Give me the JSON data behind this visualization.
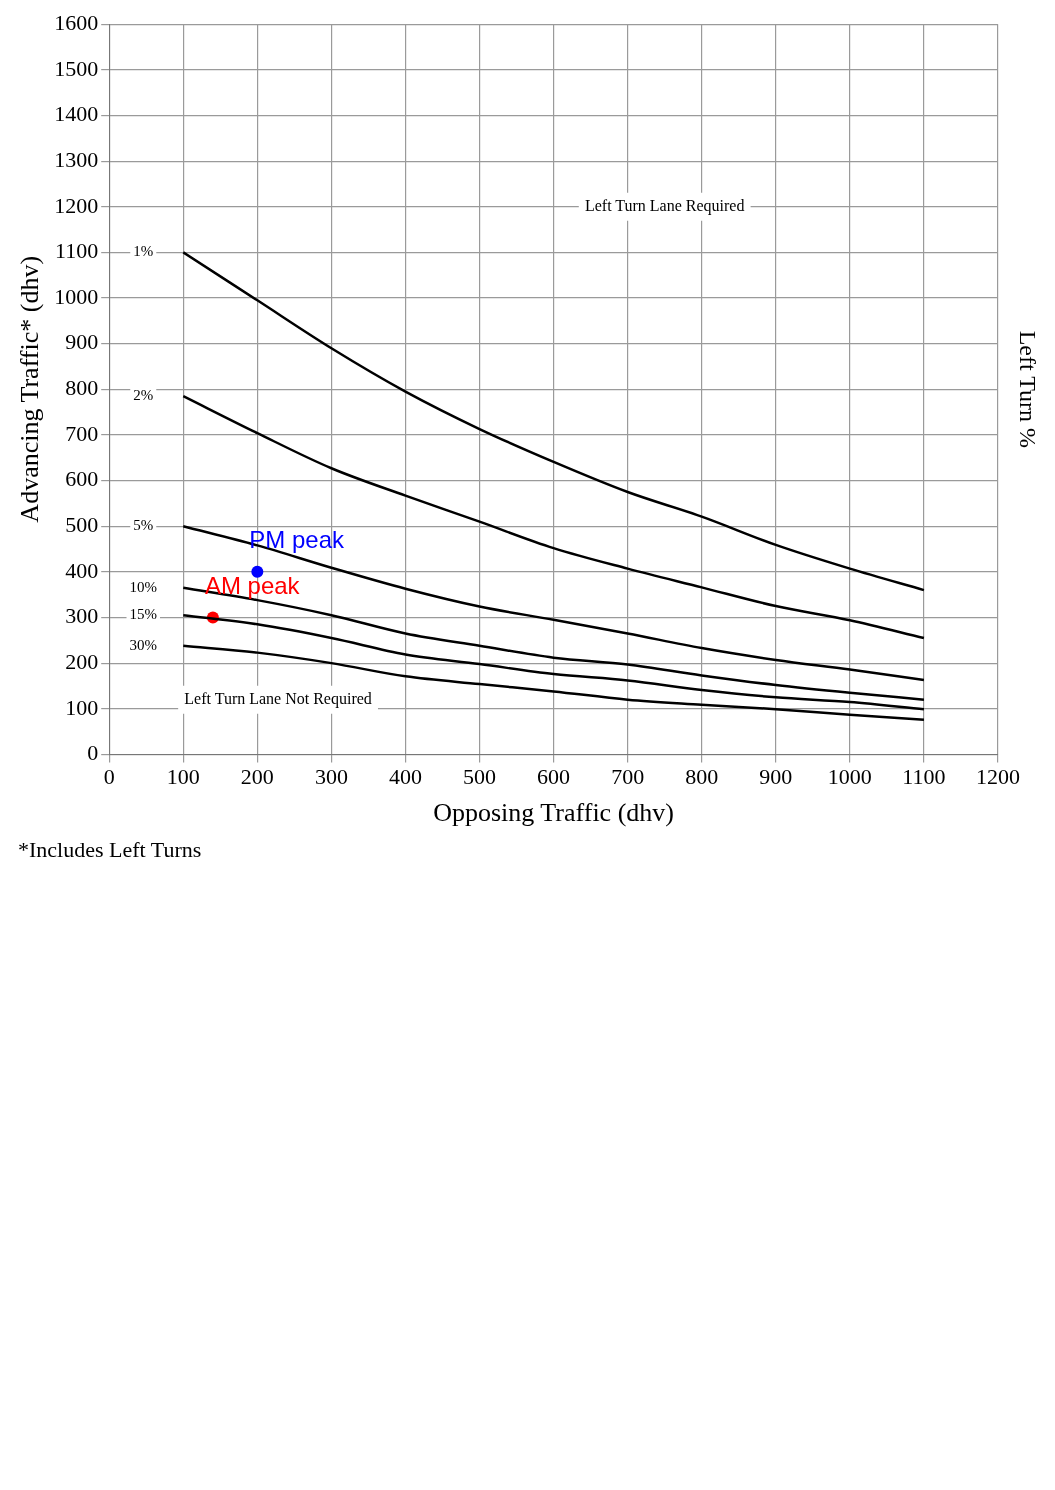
{
  "chart_data": {
    "type": "line",
    "xlabel": "Opposing Traffic (dhv)",
    "ylabel": "Advancing Traffic* (dhv)",
    "y2label": "Left Turn %",
    "x": [
      100,
      200,
      300,
      400,
      500,
      600,
      700,
      800,
      900,
      1000,
      1100
    ],
    "xlim": [
      0,
      1200
    ],
    "xticks": [
      0,
      100,
      200,
      300,
      400,
      500,
      600,
      700,
      800,
      900,
      1000,
      1100,
      1200
    ],
    "ylim": [
      0,
      1600
    ],
    "yticks": [
      0,
      100,
      200,
      300,
      400,
      500,
      600,
      700,
      800,
      900,
      1000,
      1100,
      1200,
      1300,
      1400,
      1500,
      1600
    ],
    "grid": true,
    "legend": false,
    "series": [
      {
        "name": "1%",
        "color": "#000000",
        "values": [
          1100,
          995,
          890,
          795,
          713,
          641,
          575,
          521,
          459,
          407,
          360
        ]
      },
      {
        "name": "2%",
        "color": "#000000",
        "values": [
          785,
          704,
          627,
          567,
          510,
          452,
          407,
          366,
          325,
          294,
          255
        ]
      },
      {
        "name": "5%",
        "color": "#000000",
        "values": [
          500,
          458,
          409,
          363,
          324,
          295,
          265,
          233,
          207,
          186,
          163
        ]
      },
      {
        "name": "10%",
        "color": "#000000",
        "values": [
          365,
          338,
          305,
          265,
          238,
          212,
          197,
          173,
          152,
          135,
          120
        ]
      },
      {
        "name": "15%",
        "color": "#000000",
        "values": [
          305,
          285,
          255,
          219,
          198,
          176,
          162,
          141,
          125,
          115,
          99
        ]
      },
      {
        "name": "30%",
        "color": "#000000",
        "values": [
          238,
          223,
          200,
          171,
          154,
          138,
          120,
          109,
          99,
          87,
          76
        ]
      },
      {
        "name": "PM peak",
        "type": "scatter",
        "marker": "circle",
        "color": "#0000ff",
        "x": [
          200
        ],
        "values": [
          400
        ]
      },
      {
        "name": "AM peak",
        "type": "scatter",
        "marker": "circle",
        "color": "#ff0000",
        "x": [
          140
        ],
        "values": [
          300
        ]
      }
    ],
    "annotations": [
      "Left Turn Lane Required",
      "Left Turn Lane Not Required",
      "*Includes Left Turns"
    ]
  }
}
